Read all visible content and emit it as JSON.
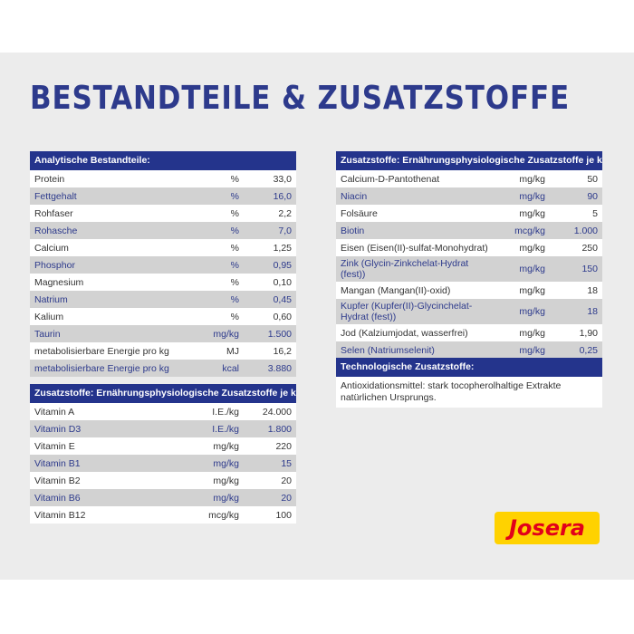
{
  "title": "BESTANDTEILE & ZUSATZSTOFFE",
  "analytic": {
    "header": "Analytische Bestandteile:",
    "rows": [
      [
        "Protein",
        "%",
        "33,0"
      ],
      [
        "Fettgehalt",
        "%",
        "16,0"
      ],
      [
        "Rohfaser",
        "%",
        "2,2"
      ],
      [
        "Rohasche",
        "%",
        "7,0"
      ],
      [
        "Calcium",
        "%",
        "1,25"
      ],
      [
        "Phosphor",
        "%",
        "0,95"
      ],
      [
        "Magnesium",
        "%",
        "0,10"
      ],
      [
        "Natrium",
        "%",
        "0,45"
      ],
      [
        "Kalium",
        "%",
        "0,60"
      ],
      [
        "Taurin",
        "mg/kg",
        "1.500"
      ],
      [
        "metabolisierbare Energie pro kg",
        "MJ",
        "16,2"
      ],
      [
        "metabolisierbare Energie pro kg",
        "kcal",
        "3.880"
      ]
    ]
  },
  "vitamins": {
    "header": "Zusatzstoffe: Ernährungsphysiologische Zusatzstoffe je kg:",
    "rows": [
      [
        "Vitamin A",
        "I.E./kg",
        "24.000"
      ],
      [
        "Vitamin D3",
        "I.E./kg",
        "1.800"
      ],
      [
        "Vitamin E",
        "mg/kg",
        "220"
      ],
      [
        "Vitamin B1",
        "mg/kg",
        "15"
      ],
      [
        "Vitamin B2",
        "mg/kg",
        "20"
      ],
      [
        "Vitamin B6",
        "mg/kg",
        "20"
      ],
      [
        "Vitamin B12",
        "mcg/kg",
        "100"
      ]
    ]
  },
  "minerals": {
    "header": "Zusatzstoffe: Ernährungsphysiologische Zusatzstoffe je kg:",
    "rows": [
      [
        "Calcium-D-Pantothenat",
        "mg/kg",
        "50"
      ],
      [
        "Niacin",
        "mg/kg",
        "90"
      ],
      [
        "Folsäure",
        "mg/kg",
        "5"
      ],
      [
        "Biotin",
        "mcg/kg",
        "1.000"
      ],
      [
        "Eisen (Eisen(II)-sulfat-Monohydrat)",
        "mg/kg",
        "250"
      ],
      [
        "Zink (Glycin-Zinkchelat-Hydrat (fest))",
        "mg/kg",
        "150"
      ],
      [
        "Mangan (Mangan(II)-oxid)",
        "mg/kg",
        "18"
      ],
      [
        "Kupfer (Kupfer(II)-Glycinchelat-Hydrat (fest))",
        "mg/kg",
        "18"
      ],
      [
        "Jod (Kalziumjodat, wasserfrei)",
        "mg/kg",
        "1,90"
      ],
      [
        "Selen (Natriumselenit)",
        "mg/kg",
        "0,25"
      ]
    ]
  },
  "tech": {
    "header": "Technologische Zusatzstoffe:",
    "text": "Antioxidationsmittel: stark tocopherolhaltige Extrakte natürlichen Ursprungs."
  },
  "logo": "Josera",
  "colors": {
    "brand_blue": "#24348c",
    "logo_yellow": "#ffd200",
    "logo_red": "#e2001a"
  }
}
